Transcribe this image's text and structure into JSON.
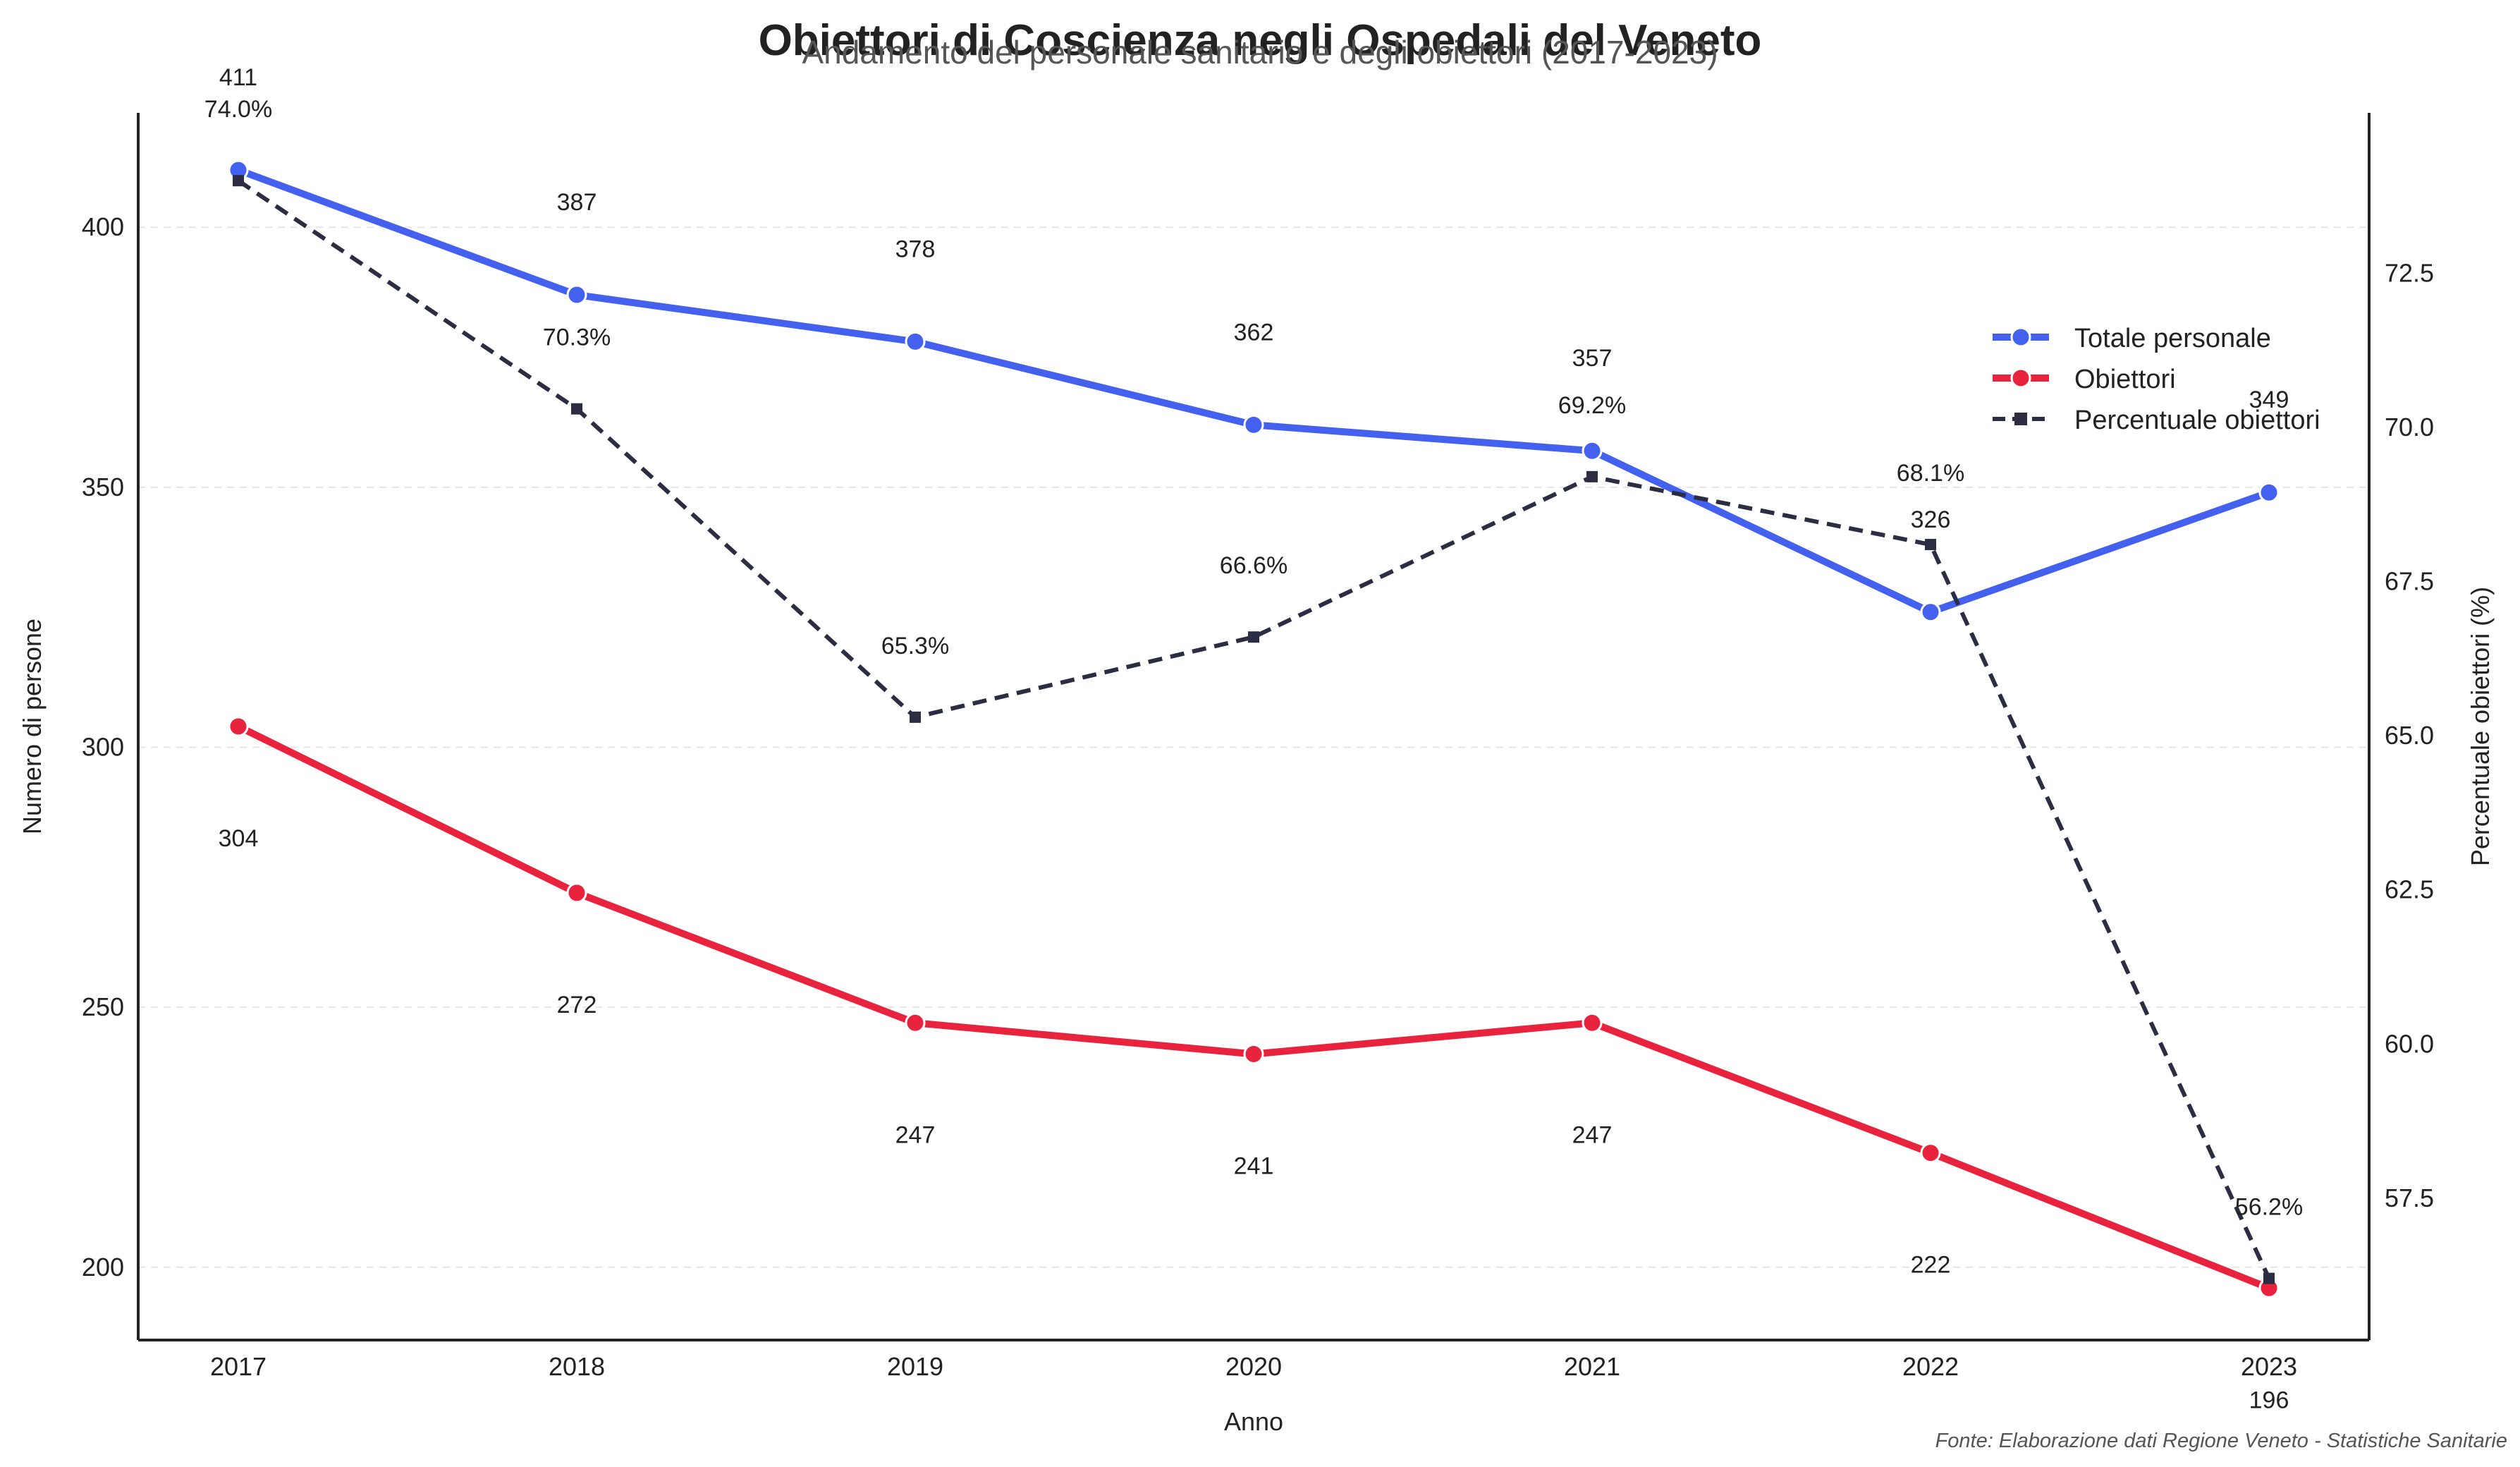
{
  "chart_data": {
    "type": "line",
    "title": "Obiettori di Coscienza negli Ospedali del Veneto",
    "subtitle": "Andamento del personale sanitario e degli obiettori (2017-2023)",
    "xlabel": "Anno",
    "ylabel": "Numero di persone",
    "y2label": "Percentuale obiettori (%)",
    "source": "Fonte: Elaborazione dati Regione Veneto - Statistiche Sanitarie",
    "x": [
      "2017",
      "2018",
      "2019",
      "2020",
      "2021",
      "2022",
      "2023"
    ],
    "ylim": [
      186,
      422
    ],
    "y2lim": [
      55.2,
      75.1
    ],
    "yticks": [
      "200",
      "250",
      "300",
      "350",
      "400"
    ],
    "y2ticks": [
      "57.5",
      "60.0",
      "62.5",
      "65.0",
      "67.5",
      "70.0",
      "72.5"
    ],
    "grid": "horizontal dashed",
    "legend_position": "upper right",
    "series": [
      {
        "name": "Totale personale",
        "axis": "left",
        "color": "#4361ee",
        "marker": "circle",
        "style": "solid",
        "values": [
          411,
          387,
          378,
          362,
          357,
          326,
          349
        ],
        "labels": [
          "411",
          "387",
          "378",
          "362",
          "357",
          "326",
          "349"
        ]
      },
      {
        "name": "Obiettori",
        "axis": "left",
        "color": "#e9233d",
        "marker": "circle",
        "style": "solid",
        "values": [
          304,
          272,
          247,
          241,
          247,
          222,
          196
        ],
        "labels": [
          "304",
          "272",
          "247",
          "241",
          "247",
          "222",
          "196"
        ]
      },
      {
        "name": "Percentuale obiettori",
        "axis": "right",
        "color": "#2b2d42",
        "marker": "square",
        "style": "dashed",
        "values": [
          74.0,
          70.3,
          65.3,
          66.6,
          69.2,
          68.1,
          56.2
        ],
        "labels": [
          "74.0%",
          "70.3%",
          "65.3%",
          "66.6%",
          "69.2%",
          "68.1%",
          "56.2%"
        ]
      }
    ]
  }
}
